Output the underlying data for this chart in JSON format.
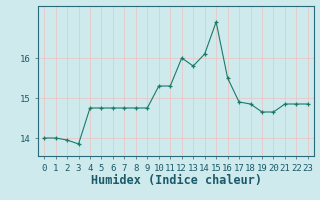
{
  "x": [
    0,
    1,
    2,
    3,
    4,
    5,
    6,
    7,
    8,
    9,
    10,
    11,
    12,
    13,
    14,
    15,
    16,
    17,
    18,
    19,
    20,
    21,
    22,
    23
  ],
  "y": [
    14.0,
    14.0,
    13.95,
    13.85,
    14.75,
    14.75,
    14.75,
    14.75,
    14.75,
    14.75,
    15.3,
    15.3,
    16.0,
    15.8,
    16.1,
    16.9,
    15.5,
    14.9,
    14.85,
    14.65,
    14.65,
    14.85,
    14.85,
    14.85
  ],
  "xlabel": "Humidex (Indice chaleur)",
  "ylim": [
    13.55,
    17.3
  ],
  "yticks": [
    14,
    15,
    16
  ],
  "xticks": [
    0,
    1,
    2,
    3,
    4,
    5,
    6,
    7,
    8,
    9,
    10,
    11,
    12,
    13,
    14,
    15,
    16,
    17,
    18,
    19,
    20,
    21,
    22,
    23
  ],
  "line_color": "#1a7a6a",
  "marker": "+",
  "bg_color": "#ceeaec",
  "grid_color": "#e8c8c8",
  "tick_label_fontsize": 6.5,
  "xlabel_fontsize": 8.5
}
